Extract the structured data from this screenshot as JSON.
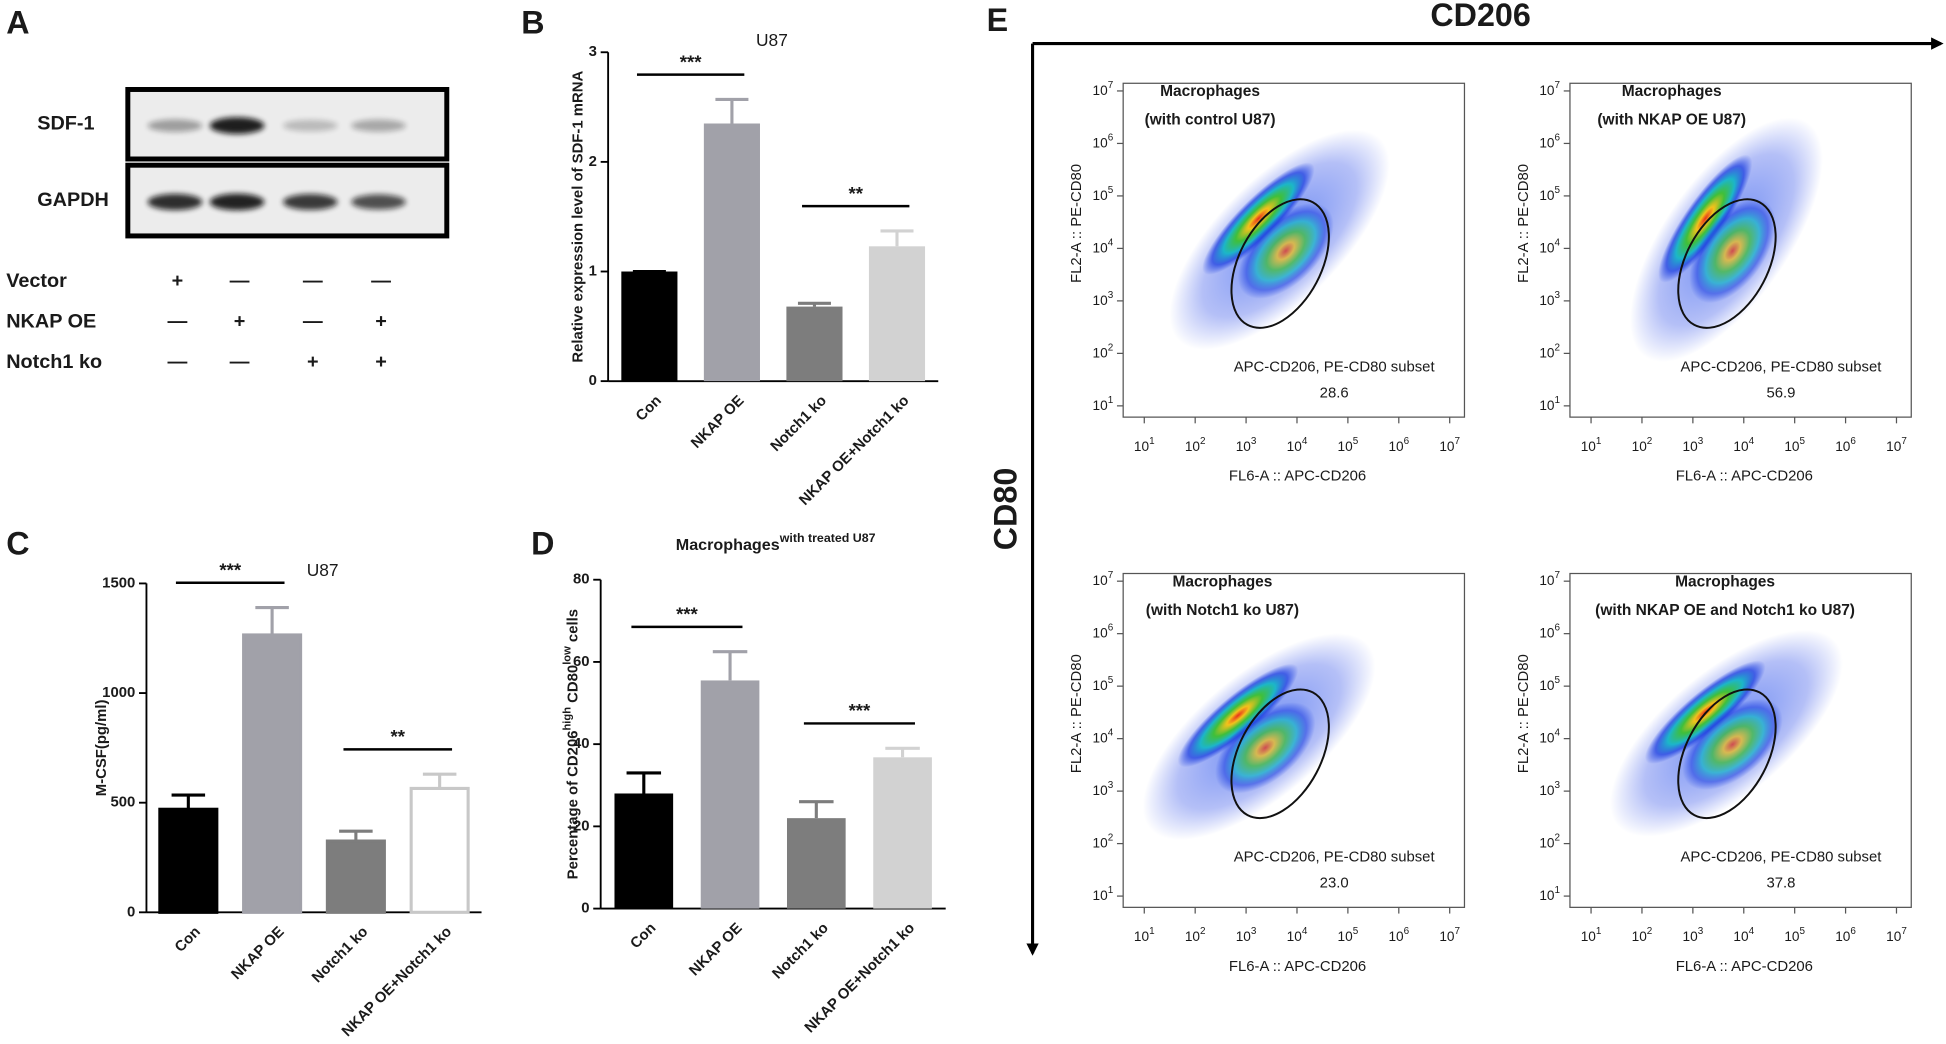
{
  "panel_labels": [
    "A",
    "B",
    "C",
    "D",
    "E"
  ],
  "blot": {
    "rows": [
      "SDF-1",
      "GAPDH"
    ],
    "conditions": [
      {
        "name": "Vector",
        "signs": [
          "+",
          "—",
          "—",
          "—"
        ]
      },
      {
        "name": "NKAP OE",
        "signs": [
          "—",
          "+",
          "—",
          "+"
        ]
      },
      {
        "name": "Notch1 ko",
        "signs": [
          "—",
          "—",
          "+",
          "+"
        ]
      }
    ]
  },
  "flow_axes": {
    "x": "CD206",
    "y": "CD80"
  },
  "chart_data": [
    {
      "type": "bar",
      "title": "U87",
      "ylabel": "Relative expression level of SDF-1 mRNA",
      "categories": [
        "Con",
        "NKAP OE",
        "Notch1 ko",
        "NKAP OE+Notch1 ko"
      ],
      "values": [
        1.0,
        2.35,
        0.68,
        1.23
      ],
      "errors": [
        0,
        0.22,
        0.03,
        0.14
      ],
      "colors": [
        "#000000",
        "#a1a1a9",
        "#7d7d7d",
        "#d2d2d2"
      ],
      "ylim": [
        0,
        3
      ],
      "yticks": [
        0,
        1,
        2,
        3
      ],
      "significance": [
        {
          "label": "***",
          "between": [
            "Con",
            "NKAP OE"
          ]
        },
        {
          "label": "**",
          "between": [
            "Notch1 ko",
            "NKAP OE+Notch1 ko"
          ]
        }
      ]
    },
    {
      "type": "bar",
      "title": "U87",
      "ylabel": "M-CSF(pg/ml)",
      "categories": [
        "Con",
        "NKAP OE",
        "Notch1 ko",
        "NKAP OE+Notch1 ko"
      ],
      "values": [
        470,
        1265,
        325,
        565
      ],
      "errors": [
        65,
        125,
        45,
        65
      ],
      "colors": [
        "#000000",
        "#a1a1a9",
        "#7d7d7d",
        "#ffffff"
      ],
      "edgecolors": [
        "#000000",
        "#a1a1a9",
        "#7d7d7d",
        "#c8c8c8"
      ],
      "ylim": [
        0,
        1500
      ],
      "yticks": [
        0,
        500,
        1000,
        1500
      ],
      "significance": [
        {
          "label": "***",
          "between": [
            "Con",
            "NKAP OE"
          ]
        },
        {
          "label": "**",
          "between": [
            "Notch1 ko",
            "NKAP OE+Notch1 ko"
          ]
        }
      ]
    },
    {
      "type": "bar",
      "title": "Macrophages",
      "title_sup": "with treated U87",
      "ylabel_parts": [
        {
          "text": "Percentage of CD206"
        },
        {
          "text": "high",
          "sup": true
        },
        {
          "text": " CD80"
        },
        {
          "text": "low",
          "sup": true
        },
        {
          "text": " cells"
        }
      ],
      "categories": [
        "Con",
        "NKAP OE",
        "Notch1 ko",
        "NKAP OE+Notch1 ko"
      ],
      "values": [
        28,
        55.5,
        22,
        36.8
      ],
      "errors": [
        5,
        7,
        4,
        2.2
      ],
      "colors": [
        "#000000",
        "#a1a1a9",
        "#7d7d7d",
        "#d2d2d2"
      ],
      "ylim": [
        0,
        80
      ],
      "yticks": [
        0,
        20,
        40,
        60,
        80
      ],
      "significance": [
        {
          "label": "***",
          "between": [
            "Con",
            "NKAP OE"
          ]
        },
        {
          "label": "***",
          "between": [
            "Notch1 ko",
            "NKAP OE+Notch1 ko"
          ]
        }
      ]
    },
    {
      "type": "density",
      "title_lines": [
        "Macrophages",
        "(with control U87)"
      ],
      "xlabel": "FL6-A :: APC-CD206",
      "ylabel": "FL2-A :: PE-CD80",
      "xscale": "log",
      "yscale": "log",
      "xlim": [
        3.85,
        19500000
      ],
      "ylim": [
        6.1,
        14000000
      ],
      "xticks": [
        {
          "value": 10,
          "label": "10",
          "sup": "1"
        },
        {
          "value": 100,
          "label": "10",
          "sup": "2"
        },
        {
          "value": 1000,
          "label": "10",
          "sup": "3"
        },
        {
          "value": 10000,
          "label": "10",
          "sup": "4"
        },
        {
          "value": 100000,
          "label": "10",
          "sup": "5"
        },
        {
          "value": 1000000,
          "label": "10",
          "sup": "6"
        },
        {
          "value": 10000000,
          "label": "10",
          "sup": "7"
        }
      ],
      "yticks": [
        {
          "value": 10,
          "label": "10",
          "sup": "1"
        },
        {
          "value": 100,
          "label": "10",
          "sup": "2"
        },
        {
          "value": 1000,
          "label": "10",
          "sup": "3"
        },
        {
          "value": 10000,
          "label": "10",
          "sup": "4"
        },
        {
          "value": 100000,
          "label": "10",
          "sup": "5"
        },
        {
          "value": 1000000,
          "label": "10",
          "sup": "6"
        },
        {
          "value": 10000000,
          "label": "10",
          "sup": "7"
        }
      ],
      "gate": {
        "label": "APC-CD206, PE-CD80 subset",
        "value": 28.6,
        "value_label": "28.6"
      }
    },
    {
      "type": "density",
      "title_lines": [
        "Macrophages",
        "(with NKAP OE U87)"
      ],
      "xlabel": "FL6-A :: APC-CD206",
      "ylabel": "FL2-A :: PE-CD80",
      "xscale": "log",
      "yscale": "log",
      "xlim": [
        3.85,
        19500000
      ],
      "ylim": [
        6.1,
        14000000
      ],
      "xticks": [
        {
          "value": 10,
          "label": "10",
          "sup": "1"
        },
        {
          "value": 100,
          "label": "10",
          "sup": "2"
        },
        {
          "value": 1000,
          "label": "10",
          "sup": "3"
        },
        {
          "value": 10000,
          "label": "10",
          "sup": "4"
        },
        {
          "value": 100000,
          "label": "10",
          "sup": "5"
        },
        {
          "value": 1000000,
          "label": "10",
          "sup": "6"
        },
        {
          "value": 10000000,
          "label": "10",
          "sup": "7"
        }
      ],
      "yticks": [
        {
          "value": 10,
          "label": "10",
          "sup": "1"
        },
        {
          "value": 100,
          "label": "10",
          "sup": "2"
        },
        {
          "value": 1000,
          "label": "10",
          "sup": "3"
        },
        {
          "value": 10000,
          "label": "10",
          "sup": "4"
        },
        {
          "value": 100000,
          "label": "10",
          "sup": "5"
        },
        {
          "value": 1000000,
          "label": "10",
          "sup": "6"
        },
        {
          "value": 10000000,
          "label": "10",
          "sup": "7"
        }
      ],
      "gate": {
        "label": "APC-CD206, PE-CD80 subset",
        "value": 56.9,
        "value_label": "56.9"
      }
    },
    {
      "type": "density",
      "title_lines": [
        "Macrophages",
        "(with Notch1 ko U87)"
      ],
      "xlabel": "FL6-A :: APC-CD206",
      "ylabel": "FL2-A :: PE-CD80",
      "xscale": "log",
      "yscale": "log",
      "xlim": [
        3.85,
        19500000
      ],
      "ylim": [
        6.1,
        14000000
      ],
      "xticks": [
        {
          "value": 10,
          "label": "10",
          "sup": "1"
        },
        {
          "value": 100,
          "label": "10",
          "sup": "2"
        },
        {
          "value": 1000,
          "label": "10",
          "sup": "3"
        },
        {
          "value": 10000,
          "label": "10",
          "sup": "4"
        },
        {
          "value": 100000,
          "label": "10",
          "sup": "5"
        },
        {
          "value": 1000000,
          "label": "10",
          "sup": "6"
        },
        {
          "value": 10000000,
          "label": "10",
          "sup": "7"
        }
      ],
      "yticks": [
        {
          "value": 10,
          "label": "10",
          "sup": "1"
        },
        {
          "value": 100,
          "label": "10",
          "sup": "2"
        },
        {
          "value": 1000,
          "label": "10",
          "sup": "3"
        },
        {
          "value": 10000,
          "label": "10",
          "sup": "4"
        },
        {
          "value": 100000,
          "label": "10",
          "sup": "5"
        },
        {
          "value": 1000000,
          "label": "10",
          "sup": "6"
        },
        {
          "value": 10000000,
          "label": "10",
          "sup": "7"
        }
      ],
      "gate": {
        "label": "APC-CD206, PE-CD80 subset",
        "value": 23.0,
        "value_label": "23.0"
      }
    },
    {
      "type": "density",
      "title_lines": [
        "Macrophages",
        "(with NKAP OE and Notch1 ko U87)"
      ],
      "xlabel": "FL6-A :: APC-CD206",
      "ylabel": "FL2-A :: PE-CD80",
      "xscale": "log",
      "yscale": "log",
      "xlim": [
        3.85,
        19500000
      ],
      "ylim": [
        6.1,
        14000000
      ],
      "xticks": [
        {
          "value": 10,
          "label": "10",
          "sup": "1"
        },
        {
          "value": 100,
          "label": "10",
          "sup": "2"
        },
        {
          "value": 1000,
          "label": "10",
          "sup": "3"
        },
        {
          "value": 10000,
          "label": "10",
          "sup": "4"
        },
        {
          "value": 100000,
          "label": "10",
          "sup": "5"
        },
        {
          "value": 1000000,
          "label": "10",
          "sup": "6"
        },
        {
          "value": 10000000,
          "label": "10",
          "sup": "7"
        }
      ],
      "yticks": [
        {
          "value": 10,
          "label": "10",
          "sup": "1"
        },
        {
          "value": 100,
          "label": "10",
          "sup": "2"
        },
        {
          "value": 1000,
          "label": "10",
          "sup": "3"
        },
        {
          "value": 10000,
          "label": "10",
          "sup": "4"
        },
        {
          "value": 100000,
          "label": "10",
          "sup": "5"
        },
        {
          "value": 1000000,
          "label": "10",
          "sup": "6"
        },
        {
          "value": 10000000,
          "label": "10",
          "sup": "7"
        }
      ],
      "gate": {
        "label": "APC-CD206, PE-CD80 subset",
        "value": 37.8,
        "value_label": "37.8"
      }
    }
  ]
}
